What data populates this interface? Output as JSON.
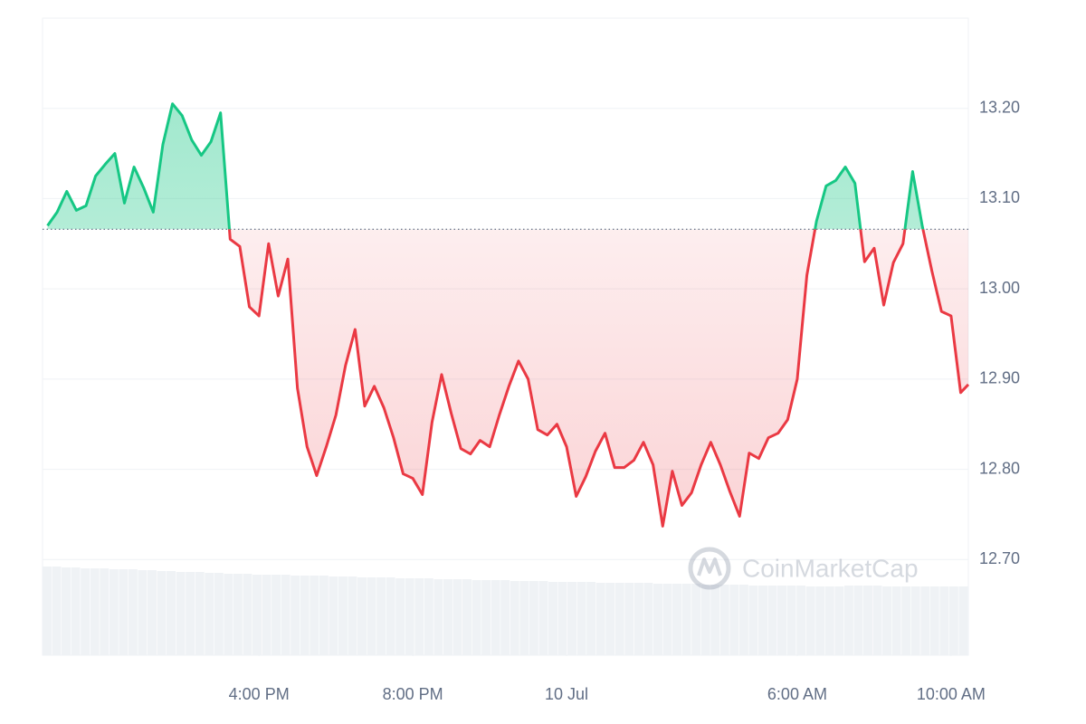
{
  "chart_data": {
    "type": "line",
    "watermark": "CoinMarketCap",
    "baseline": 13.066,
    "colors": {
      "up": "#16c784",
      "down": "#ea3943",
      "volume": "#eff2f5"
    },
    "grid": true,
    "xlim": [
      -13.63,
      10.45
    ],
    "xticks": [
      {
        "value": -8,
        "label": "4:00 PM"
      },
      {
        "value": -4,
        "label": "8:00 PM"
      },
      {
        "value": 0,
        "label": "10 Jul"
      },
      {
        "value": 6,
        "label": "6:00 AM"
      },
      {
        "value": 10,
        "label": "10:00 AM"
      }
    ],
    "ylim": [
      12.594,
      13.3
    ],
    "yticks": [
      {
        "value": 12.7,
        "label": "12.70"
      },
      {
        "value": 12.8,
        "label": "12.80"
      },
      {
        "value": 12.9,
        "label": "12.90"
      },
      {
        "value": 13.0,
        "label": "13.00"
      },
      {
        "value": 13.1,
        "label": "13.10"
      },
      {
        "value": 13.2,
        "label": "13.20"
      }
    ],
    "x": [
      -13.5,
      -13.25,
      -13,
      -12.75,
      -12.5,
      -12.25,
      -12,
      -11.75,
      -11.5,
      -11.25,
      -11,
      -10.75,
      -10.5,
      -10.25,
      -10,
      -9.75,
      -9.5,
      -9.25,
      -9,
      -8.75,
      -8.5,
      -8.25,
      -8,
      -7.75,
      -7.5,
      -7.25,
      -7,
      -6.75,
      -6.5,
      -6.25,
      -6,
      -5.75,
      -5.5,
      -5.25,
      -5,
      -4.75,
      -4.5,
      -4.25,
      -4,
      -3.75,
      -3.5,
      -3.25,
      -3,
      -2.75,
      -2.5,
      -2.25,
      -2,
      -1.75,
      -1.5,
      -1.25,
      -1,
      -0.75,
      -0.5,
      -0.25,
      0,
      0.25,
      0.5,
      0.75,
      1,
      1.25,
      1.5,
      1.75,
      2,
      2.25,
      2.5,
      2.75,
      3,
      3.25,
      3.5,
      3.75,
      4,
      4.25,
      4.5,
      4.75,
      5,
      5.25,
      5.5,
      5.75,
      6,
      6.25,
      6.5,
      6.75,
      7,
      7.25,
      7.5,
      7.75,
      8,
      8.25,
      8.5,
      8.75,
      9,
      9.25,
      9.5,
      9.75,
      10,
      10.25,
      10.45
    ],
    "series": [
      {
        "name": "Price",
        "values": [
          13.07,
          13.085,
          13.108,
          13.087,
          13.092,
          13.125,
          13.138,
          13.15,
          13.095,
          13.135,
          13.112,
          13.085,
          13.16,
          13.205,
          13.192,
          13.165,
          13.148,
          13.163,
          13.195,
          13.055,
          13.047,
          12.98,
          12.97,
          13.05,
          12.992,
          13.033,
          12.89,
          12.825,
          12.793,
          12.825,
          12.86,
          12.915,
          12.955,
          12.87,
          12.892,
          12.868,
          12.835,
          12.795,
          12.79,
          12.772,
          12.852,
          12.905,
          12.862,
          12.823,
          12.817,
          12.832,
          12.825,
          12.86,
          12.892,
          12.92,
          12.9,
          12.844,
          12.838,
          12.85,
          12.825,
          12.77,
          12.792,
          12.82,
          12.84,
          12.802,
          12.802,
          12.81,
          12.83,
          12.805,
          12.737,
          12.798,
          12.76,
          12.774,
          12.805,
          12.83,
          12.805,
          12.775,
          12.748,
          12.818,
          12.812,
          12.835,
          12.84,
          12.855,
          12.9,
          13.015,
          13.075,
          13.114,
          13.12,
          13.135,
          13.117,
          13.03,
          13.045,
          12.982,
          13.029,
          13.05,
          13.13,
          13.07,
          13.02,
          12.975,
          12.97,
          12.885,
          12.894
        ]
      },
      {
        "name": "Volume",
        "values": [
          98,
          98,
          97,
          97,
          96,
          96,
          96,
          95,
          95,
          95,
          94,
          94,
          93,
          93,
          92,
          92,
          92,
          91,
          91,
          90,
          90,
          90,
          89,
          89,
          89,
          89,
          88,
          88,
          88,
          88,
          87,
          87,
          87,
          86,
          86,
          86,
          86,
          85,
          85,
          85,
          85,
          84,
          84,
          84,
          84,
          83,
          83,
          83,
          83,
          82,
          82,
          82,
          82,
          81,
          81,
          81,
          81,
          81,
          80,
          80,
          80,
          80,
          80,
          80,
          79,
          79,
          79,
          79,
          79,
          78,
          78,
          78,
          78,
          78,
          77,
          77,
          77,
          77,
          77,
          77,
          76,
          76,
          76,
          76,
          77,
          77,
          77,
          77,
          76,
          76,
          76,
          76,
          76,
          76,
          76,
          76,
          76
        ]
      }
    ]
  }
}
